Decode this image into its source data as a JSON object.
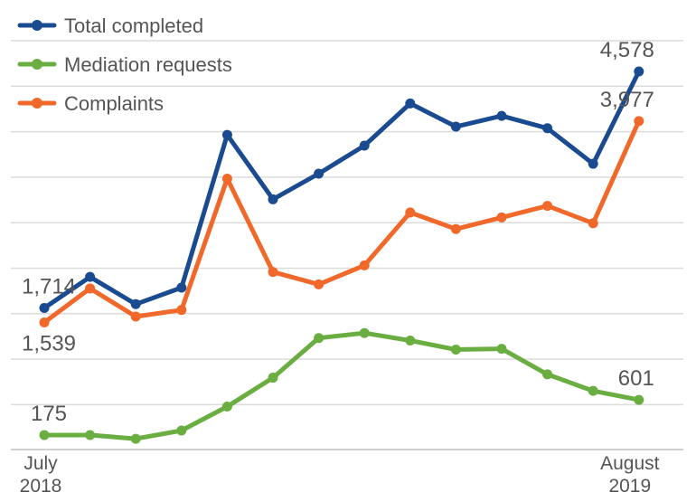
{
  "chart_data": {
    "type": "line",
    "title": "",
    "xlabel": "",
    "ylabel": "",
    "ylim": [
      0,
      4950
    ],
    "grid": true,
    "legend_position": "top-left",
    "x_tick_labels": [
      {
        "index": 0,
        "line1": "July",
        "line2": "2018"
      },
      {
        "index": 13,
        "line1": "August",
        "line2": "2019"
      }
    ],
    "series": [
      {
        "name": "Total completed",
        "color": "#1a4a8f",
        "values": [
          1714,
          2090,
          1760,
          1960,
          3810,
          3030,
          3340,
          3680,
          4190,
          3910,
          4040,
          3890,
          3460,
          4578
        ],
        "labels": [
          {
            "index": 0,
            "text": "1,714",
            "pos": "above"
          },
          {
            "index": 13,
            "text": "4,578",
            "pos": "above"
          }
        ]
      },
      {
        "name": "Mediation requests",
        "color": "#6aad40",
        "values": [
          175,
          175,
          130,
          230,
          520,
          870,
          1350,
          1410,
          1320,
          1210,
          1220,
          910,
          710,
          601
        ],
        "labels": [
          {
            "index": 0,
            "text": "175",
            "pos": "above"
          },
          {
            "index": 13,
            "text": "601",
            "pos": "above"
          }
        ]
      },
      {
        "name": "Complaints",
        "color": "#f0682a",
        "values": [
          1539,
          1950,
          1610,
          1690,
          3280,
          2150,
          2000,
          2230,
          2870,
          2670,
          2810,
          2950,
          2740,
          3977
        ],
        "labels": [
          {
            "index": 0,
            "text": "1,539",
            "pos": "below"
          },
          {
            "index": 13,
            "text": "3,977",
            "pos": "above"
          }
        ]
      }
    ]
  }
}
